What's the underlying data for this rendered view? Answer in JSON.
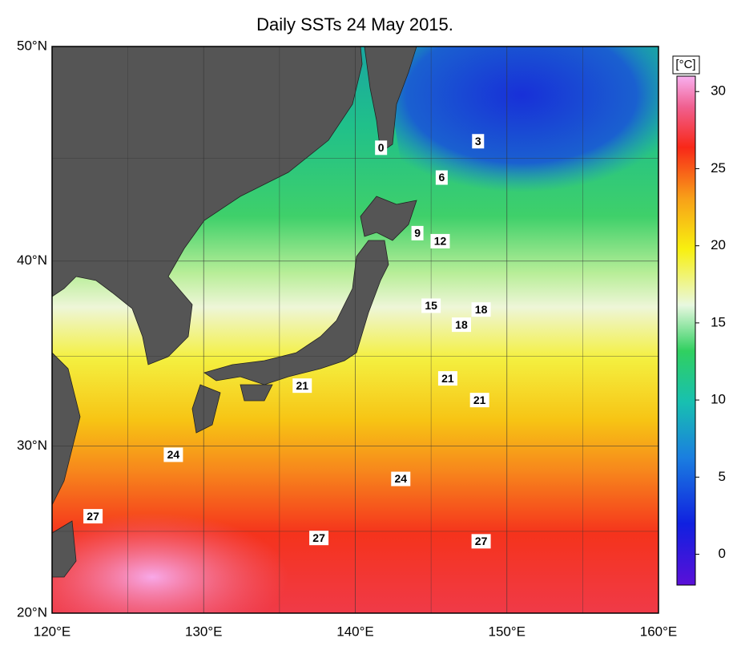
{
  "title": "Daily SSTs 24 May 2015.",
  "map": {
    "projection": "mercator",
    "xlim": [
      120,
      160
    ],
    "ylim": [
      20,
      50
    ],
    "xticks": [
      {
        "value": 120,
        "label": "120°E"
      },
      {
        "value": 130,
        "label": "130°E"
      },
      {
        "value": 140,
        "label": "140°E"
      },
      {
        "value": 150,
        "label": "150°E"
      },
      {
        "value": 160,
        "label": "160°E"
      }
    ],
    "yticks": [
      {
        "value": 20,
        "label": "20°N"
      },
      {
        "value": 30,
        "label": "30°N"
      },
      {
        "value": 40,
        "label": "40°N"
      },
      {
        "value": 50,
        "label": "50°N"
      }
    ],
    "minor_xticks": [
      125,
      135,
      145,
      155
    ],
    "minor_yticks": [
      25,
      35,
      45
    ],
    "contour_labels": [
      {
        "value": 0,
        "lon": 141.7,
        "lat": 45.5
      },
      {
        "value": 3,
        "lon": 148.1,
        "lat": 45.8
      },
      {
        "value": 6,
        "lon": 145.7,
        "lat": 44.1
      },
      {
        "value": 9,
        "lon": 144.1,
        "lat": 41.4
      },
      {
        "value": 12,
        "lon": 145.6,
        "lat": 41.0
      },
      {
        "value": 15,
        "lon": 145.0,
        "lat": 37.7
      },
      {
        "value": 18,
        "lon": 148.3,
        "lat": 37.5
      },
      {
        "value": 18,
        "lon": 147.0,
        "lat": 36.7
      },
      {
        "value": 21,
        "lon": 136.5,
        "lat": 33.4
      },
      {
        "value": 21,
        "lon": 146.1,
        "lat": 33.8
      },
      {
        "value": 21,
        "lon": 148.2,
        "lat": 32.6
      },
      {
        "value": 24,
        "lon": 128.0,
        "lat": 29.5
      },
      {
        "value": 24,
        "lon": 143.0,
        "lat": 28.1
      },
      {
        "value": 27,
        "lon": 122.7,
        "lat": 25.9
      },
      {
        "value": 27,
        "lon": 137.6,
        "lat": 24.6
      },
      {
        "value": 27,
        "lon": 148.3,
        "lat": 24.4
      }
    ]
  },
  "colorbar": {
    "unit": "[°C]",
    "clim": [
      -2,
      31
    ],
    "ticks": [
      0,
      5,
      10,
      15,
      20,
      25,
      30
    ]
  }
}
